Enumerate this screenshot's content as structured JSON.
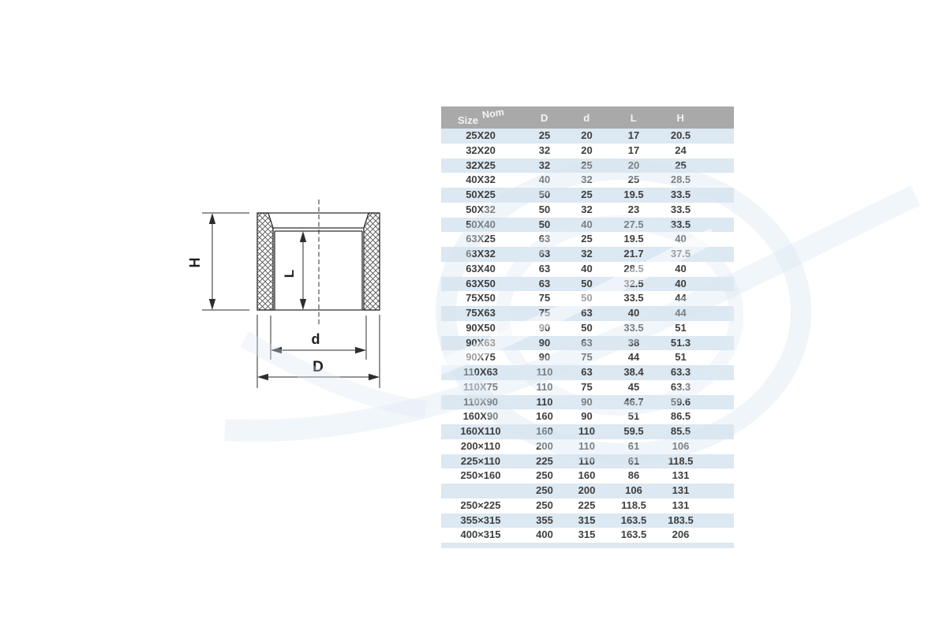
{
  "drawing": {
    "labels": {
      "H": "H",
      "L": "L",
      "d": "d",
      "D": "D"
    },
    "line_color": "#2d2d2d"
  },
  "table": {
    "header": {
      "size": "Size",
      "nom": "Nom",
      "columns": [
        "D",
        "d",
        "L",
        "H"
      ]
    },
    "colors": {
      "header_bg": "#a9a9a9",
      "header_text": "#f4f4f4",
      "stripe_blue": "#dce8f2",
      "cell_text": "#3e3e3e",
      "watermark_blue": "#d6e5f1"
    },
    "rows": [
      {
        "size": "25X20",
        "D": "25",
        "d": "20",
        "L": "17",
        "H": "20.5"
      },
      {
        "size": "32X20",
        "D": "32",
        "d": "20",
        "L": "17",
        "H": "24"
      },
      {
        "size": "32X25",
        "D": "32",
        "d": "25",
        "L": "20",
        "H": "25"
      },
      {
        "size": "40X32",
        "D": "40",
        "d": "32",
        "L": "25",
        "H": "28.5"
      },
      {
        "size": "50X25",
        "D": "50",
        "d": "25",
        "L": "19.5",
        "H": "33.5"
      },
      {
        "size": "50X32",
        "D": "50",
        "d": "32",
        "L": "23",
        "H": "33.5"
      },
      {
        "size": "50X40",
        "D": "50",
        "d": "40",
        "L": "27.5",
        "H": "33.5"
      },
      {
        "size": "63X25",
        "D": "63",
        "d": "25",
        "L": "19.5",
        "H": "40"
      },
      {
        "size": "63X32",
        "D": "63",
        "d": "32",
        "L": "21.7",
        "H": "37.5"
      },
      {
        "size": "63X40",
        "D": "63",
        "d": "40",
        "L": "28.5",
        "H": "40"
      },
      {
        "size": "63X50",
        "D": "63",
        "d": "50",
        "L": "32.5",
        "H": "40"
      },
      {
        "size": "75X50",
        "D": "75",
        "d": "50",
        "L": "33.5",
        "H": "44"
      },
      {
        "size": "75X63",
        "D": "75",
        "d": "63",
        "L": "40",
        "H": "44"
      },
      {
        "size": "90X50",
        "D": "90",
        "d": "50",
        "L": "33.5",
        "H": "51"
      },
      {
        "size": "90X63",
        "D": "90",
        "d": "63",
        "L": "38",
        "H": "51.3"
      },
      {
        "size": "90X75",
        "D": "90",
        "d": "75",
        "L": "44",
        "H": "51"
      },
      {
        "size": "110X63",
        "D": "110",
        "d": "63",
        "L": "38.4",
        "H": "63.3"
      },
      {
        "size": "110X75",
        "D": "110",
        "d": "75",
        "L": "45",
        "H": "63.3"
      },
      {
        "size": "110X90",
        "D": "110",
        "d": "90",
        "L": "46.7",
        "H": "59.6"
      },
      {
        "size": "160X90",
        "D": "160",
        "d": "90",
        "L": "51",
        "H": "86.5"
      },
      {
        "size": "160X110",
        "D": "160",
        "d": "110",
        "L": "59.5",
        "H": "85.5"
      },
      {
        "size": "200×110",
        "D": "200",
        "d": "110",
        "L": "61",
        "H": "106"
      },
      {
        "size": "225×110",
        "D": "225",
        "d": "110",
        "L": "61",
        "H": "118.5"
      },
      {
        "size": "250×160",
        "D": "250",
        "d": "160",
        "L": "86",
        "H": "131"
      },
      {
        "size": "",
        "D": "250",
        "d": "200",
        "L": "106",
        "H": "131"
      },
      {
        "size": "250×225",
        "D": "250",
        "d": "225",
        "L": "118.5",
        "H": "131"
      },
      {
        "size": "355×315",
        "D": "355",
        "d": "315",
        "L": "163.5",
        "H": "183.5"
      },
      {
        "size": "400×315",
        "D": "400",
        "d": "315",
        "L": "163.5",
        "H": "206"
      }
    ]
  }
}
